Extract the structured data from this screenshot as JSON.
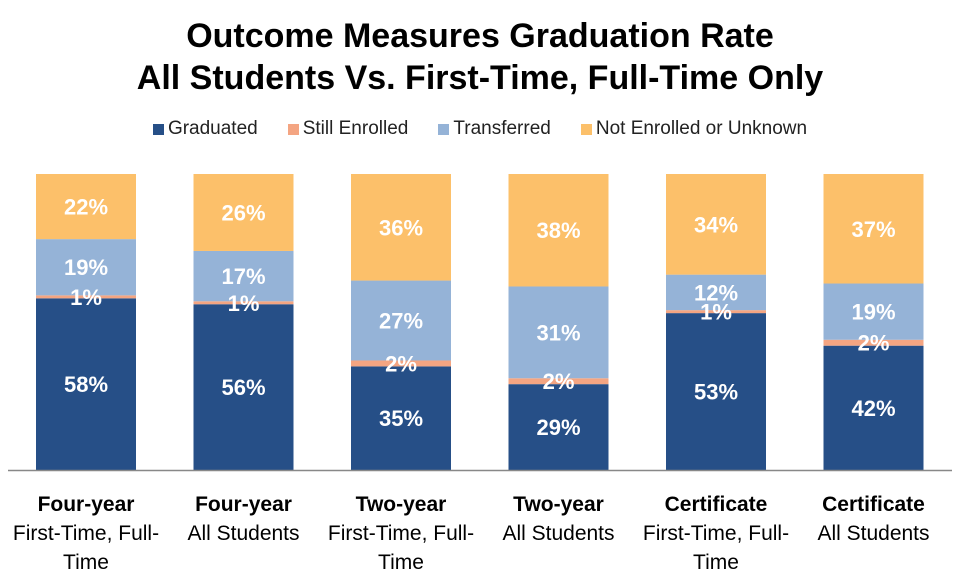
{
  "chart_data": {
    "type": "bar",
    "stacked": true,
    "title": "Outcome Measures Graduation Rate",
    "subtitle": "All Students Vs. First-Time, Full-Time Only",
    "categories": [
      {
        "main": "Four-year",
        "sub": "First-Time, Full-Time"
      },
      {
        "main": "Four-year",
        "sub": "All Students"
      },
      {
        "main": "Two-year",
        "sub": "First-Time, Full-Time"
      },
      {
        "main": "Two-year",
        "sub": "All Students"
      },
      {
        "main": "Certificate",
        "sub": "First-Time, Full-Time"
      },
      {
        "main": "Certificate",
        "sub": "All Students"
      }
    ],
    "series": [
      {
        "name": "Graduated",
        "color": "#264F87",
        "values": [
          58,
          56,
          35,
          29,
          53,
          42
        ]
      },
      {
        "name": "Still Enrolled",
        "color": "#F4A582",
        "values": [
          1,
          1,
          2,
          2,
          1,
          2
        ]
      },
      {
        "name": "Transferred",
        "color": "#95B3D7",
        "values": [
          19,
          17,
          27,
          31,
          12,
          19
        ]
      },
      {
        "name": "Not Enrolled or Unknown",
        "color": "#FCC06A",
        "values": [
          22,
          26,
          36,
          38,
          34,
          37
        ]
      }
    ],
    "ylim": [
      0,
      100
    ],
    "value_format": "percent",
    "legend": "top",
    "grid": false
  }
}
